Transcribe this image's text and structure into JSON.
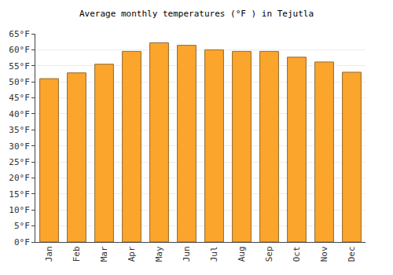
{
  "chart_data": {
    "type": "bar",
    "title": "Average monthly temperatures (°F ) in Tejutla",
    "categories": [
      "Jan",
      "Feb",
      "Mar",
      "Apr",
      "May",
      "Jun",
      "Jul",
      "Aug",
      "Sep",
      "Oct",
      "Nov",
      "Dec"
    ],
    "values": [
      51,
      52.8,
      55.5,
      59.5,
      62.2,
      61.4,
      60,
      59.5,
      59.5,
      57.7,
      56.2,
      53
    ],
    "color": "#fca52c",
    "ylim": [
      0,
      65
    ],
    "yticks": [
      {
        "value": 0,
        "label": "0°F"
      },
      {
        "value": 5,
        "label": "5°F"
      },
      {
        "value": 10,
        "label": "10°F"
      },
      {
        "value": 15,
        "label": "15°F"
      },
      {
        "value": 20,
        "label": "20°F"
      },
      {
        "value": 25,
        "label": "25°F"
      },
      {
        "value": 30,
        "label": "30°F"
      },
      {
        "value": 35,
        "label": "35°F"
      },
      {
        "value": 40,
        "label": "40°F"
      },
      {
        "value": 45,
        "label": "45°F"
      },
      {
        "value": 50,
        "label": "50°F"
      },
      {
        "value": 55,
        "label": "55°F"
      },
      {
        "value": 60,
        "label": "60°F"
      },
      {
        "value": 65,
        "label": "65°F"
      }
    ],
    "grid": true
  }
}
